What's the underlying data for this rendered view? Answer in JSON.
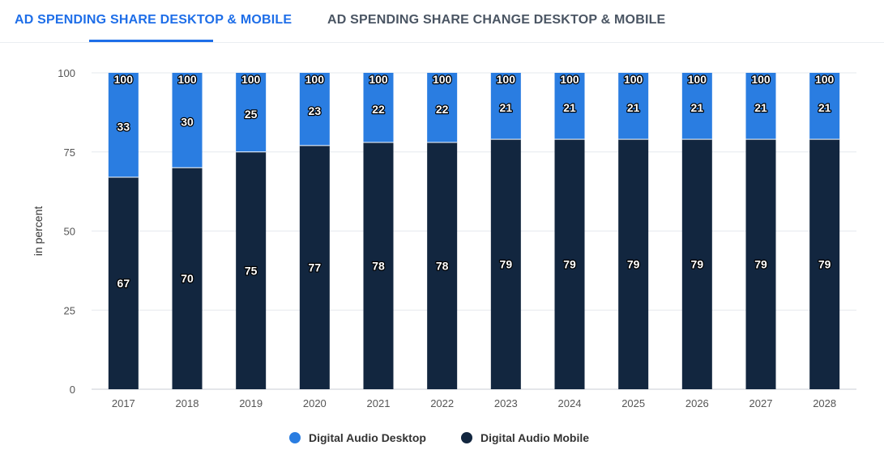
{
  "tabs": [
    {
      "label": "AD SPENDING SHARE DESKTOP & MOBILE",
      "active": true
    },
    {
      "label": "AD SPENDING SHARE CHANGE DESKTOP & MOBILE",
      "active": false
    }
  ],
  "colors": {
    "accent": "#1e6ee8",
    "desktop": "#2a7de1",
    "mobile": "#12263f",
    "grid": "#e6e9ee"
  },
  "chart_data": {
    "type": "bar",
    "stacked": true,
    "categories": [
      "2017",
      "2018",
      "2019",
      "2020",
      "2021",
      "2022",
      "2023",
      "2024",
      "2025",
      "2026",
      "2027",
      "2028"
    ],
    "series": [
      {
        "name": "Digital Audio Mobile",
        "values": [
          67,
          70,
          75,
          77,
          78,
          78,
          79,
          79,
          79,
          79,
          79,
          79
        ]
      },
      {
        "name": "Digital Audio Desktop",
        "values": [
          33,
          30,
          25,
          23,
          22,
          22,
          21,
          21,
          21,
          21,
          21,
          21
        ]
      }
    ],
    "totals": [
      100,
      100,
      100,
      100,
      100,
      100,
      100,
      100,
      100,
      100,
      100,
      100
    ],
    "ylabel": "in percent",
    "yticks": [
      0,
      25,
      50,
      75,
      100
    ],
    "ylim": [
      0,
      100
    ],
    "grid": true,
    "legend_position": "bottom"
  },
  "legend": [
    {
      "label": "Digital Audio Desktop",
      "icon": "circle-blue"
    },
    {
      "label": "Digital Audio Mobile",
      "icon": "circle-navy"
    }
  ]
}
